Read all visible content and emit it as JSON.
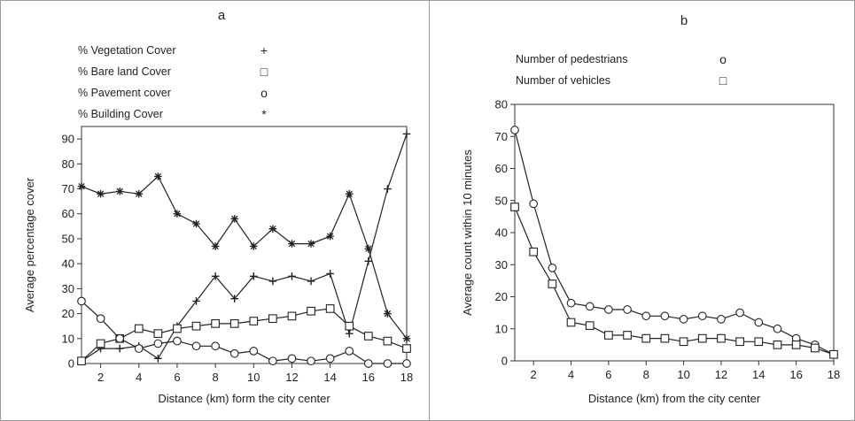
{
  "chart_data": [
    {
      "panel": "a",
      "type": "line",
      "xlabel": "Distance (km) form the  city center",
      "ylabel": "Average percentage cover",
      "xlim": [
        1,
        18
      ],
      "ylim": [
        0,
        95
      ],
      "x_ticks": [
        2,
        4,
        6,
        8,
        10,
        12,
        14,
        16,
        18
      ],
      "y_ticks": [
        0,
        10,
        20,
        30,
        40,
        50,
        60,
        70,
        80,
        90
      ],
      "legend_position": "top-left, above plot",
      "grid": false,
      "x": [
        1,
        2,
        3,
        4,
        5,
        6,
        7,
        8,
        9,
        10,
        11,
        12,
        13,
        14,
        15,
        16,
        17,
        18
      ],
      "series": [
        {
          "name": "% Vegetation Cover",
          "marker": "plus",
          "marker_glyph": "+",
          "values": [
            1,
            6,
            6,
            7,
            2,
            15,
            25,
            35,
            26,
            35,
            33,
            35,
            33,
            36,
            12,
            41,
            70,
            92
          ]
        },
        {
          "name": "% Bare land Cover",
          "marker": "square",
          "marker_glyph": "□",
          "values": [
            1,
            8,
            10,
            14,
            12,
            14,
            15,
            16,
            16,
            17,
            18,
            19,
            21,
            22,
            15,
            11,
            9,
            6
          ]
        },
        {
          "name": "% Pavement cover",
          "marker": "circle",
          "marker_glyph": "o",
          "values": [
            25,
            18,
            10,
            6,
            8,
            9,
            7,
            7,
            4,
            5,
            1,
            2,
            1,
            2,
            5,
            0,
            0,
            0
          ]
        },
        {
          "name": "% Building Cover",
          "marker": "star",
          "marker_glyph": "*",
          "values": [
            71,
            68,
            69,
            68,
            75,
            60,
            56,
            47,
            58,
            47,
            54,
            48,
            48,
            51,
            68,
            46,
            20,
            10
          ]
        }
      ],
      "title": "a"
    },
    {
      "panel": "b",
      "type": "line",
      "xlabel": "Distance (km) from the city center",
      "ylabel": "Average count within 10 minutes",
      "xlim": [
        1,
        18
      ],
      "ylim": [
        0,
        80
      ],
      "x_ticks": [
        2,
        4,
        6,
        8,
        10,
        12,
        14,
        16,
        18
      ],
      "y_ticks": [
        0,
        10,
        20,
        30,
        40,
        50,
        60,
        70,
        80
      ],
      "legend_position": "top, above plot",
      "grid": false,
      "x": [
        1,
        2,
        3,
        4,
        5,
        6,
        7,
        8,
        9,
        10,
        11,
        12,
        13,
        14,
        15,
        16,
        17,
        18
      ],
      "series": [
        {
          "name": "Number of pedestrians",
          "marker": "circle",
          "marker_glyph": "o",
          "values": [
            72,
            49,
            29,
            18,
            17,
            16,
            16,
            14,
            14,
            13,
            14,
            13,
            15,
            12,
            10,
            7,
            5,
            2
          ]
        },
        {
          "name": "Number of vehicles",
          "marker": "square",
          "marker_glyph": "□",
          "values": [
            48,
            34,
            24,
            12,
            11,
            8,
            8,
            7,
            7,
            6,
            7,
            7,
            6,
            6,
            5,
            5,
            4,
            2
          ]
        }
      ],
      "title": "b"
    }
  ]
}
